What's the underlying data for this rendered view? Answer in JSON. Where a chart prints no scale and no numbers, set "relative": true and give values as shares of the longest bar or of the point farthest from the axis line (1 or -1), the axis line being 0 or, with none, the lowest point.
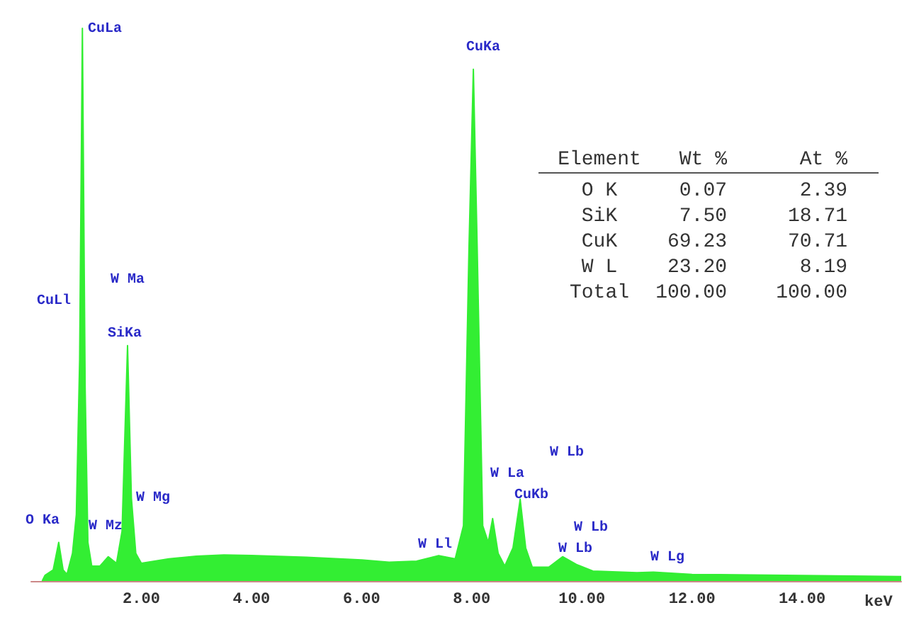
{
  "chart_data": {
    "type": "area",
    "relative": true,
    "xlabel": "keV",
    "xlim": [
      0,
      15.8
    ],
    "xticks": [
      {
        "value": 2,
        "label": "2.00"
      },
      {
        "value": 4,
        "label": "4.00"
      },
      {
        "value": 6,
        "label": "6.00"
      },
      {
        "value": 8,
        "label": "8.00"
      },
      {
        "value": 10,
        "label": "10.00"
      },
      {
        "value": 12,
        "label": "12.00"
      },
      {
        "value": 14,
        "label": "14.00"
      }
    ],
    "grid": false,
    "marker": "none",
    "series": [
      {
        "color": "#33ee33",
        "x": [
          0.2,
          0.25,
          0.4,
          0.5,
          0.58,
          0.65,
          0.75,
          0.82,
          0.88,
          0.93,
          0.98,
          1.03,
          1.1,
          1.25,
          1.4,
          1.55,
          1.65,
          1.75,
          1.82,
          1.9,
          2.0,
          2.5,
          3.0,
          3.5,
          4.0,
          5.0,
          6.0,
          6.5,
          7.0,
          7.4,
          7.7,
          7.85,
          7.95,
          8.03,
          8.1,
          8.2,
          8.3,
          8.38,
          8.48,
          8.6,
          8.75,
          8.88,
          8.98,
          9.1,
          9.4,
          9.65,
          9.9,
          10.2,
          11,
          11.3,
          12,
          14,
          15.8
        ],
        "values": [
          0,
          0.01,
          0.02,
          0.07,
          0.02,
          0.012,
          0.05,
          0.12,
          0.4,
          1.0,
          0.35,
          0.07,
          0.027,
          0.027,
          0.044,
          0.032,
          0.09,
          0.426,
          0.15,
          0.05,
          0.032,
          0.04,
          0.045,
          0.047,
          0.046,
          0.043,
          0.038,
          0.034,
          0.036,
          0.046,
          0.04,
          0.1,
          0.6,
          0.926,
          0.6,
          0.1,
          0.07,
          0.113,
          0.05,
          0.027,
          0.06,
          0.148,
          0.06,
          0.025,
          0.025,
          0.044,
          0.03,
          0.018,
          0.015,
          0.016,
          0.012,
          0.01,
          0.008
        ]
      }
    ],
    "annotations": [
      "CuLa",
      "CuLl",
      "W Ma",
      "SiKa",
      "W Mg",
      "W Mz",
      "O Ka",
      "W Ll",
      "CuKa",
      "W Lb",
      "W La",
      "CuKb",
      "W Lb",
      "W Lb",
      "W Lg",
      "Element",
      "Wt %",
      "At %",
      "O K",
      "0.07",
      "2.39",
      "SiK",
      "7.50",
      "18.71",
      "CuK",
      "69.23",
      "70.71",
      "W L",
      "23.20",
      "8.19",
      "Total",
      "100.00",
      "100.00"
    ]
  }
}
